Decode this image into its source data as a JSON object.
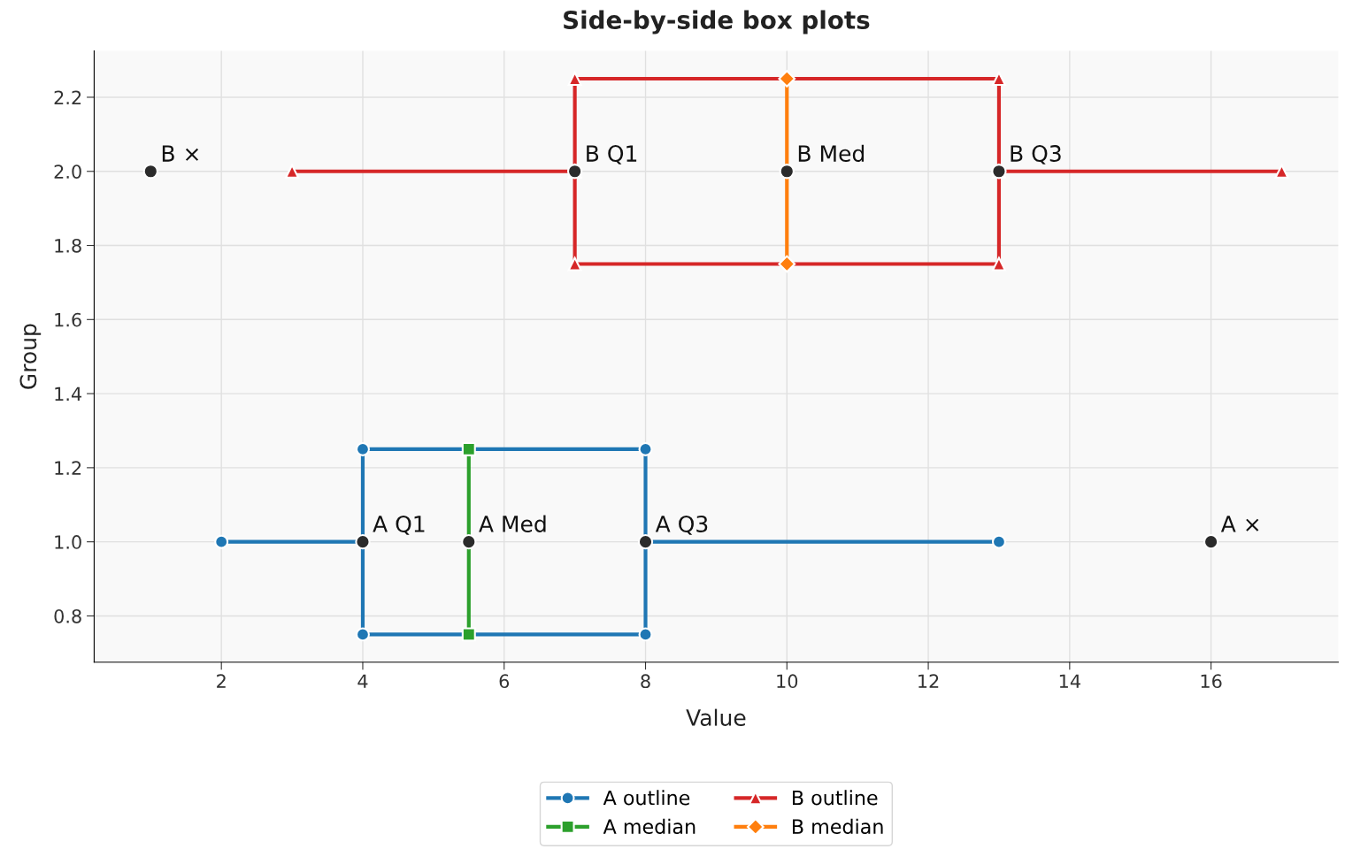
{
  "chart_data": {
    "type": "line",
    "title": "Side-by-side box plots",
    "xlabel": "Value",
    "ylabel": "Group",
    "xlim": [
      0.2,
      17.8
    ],
    "xticks": [
      2,
      4,
      6,
      8,
      10,
      12,
      14,
      16
    ],
    "ylim": [
      0.675,
      2.325
    ],
    "yticks": [
      {
        "value": 0.8,
        "label": "0.8"
      },
      {
        "value": 1.0,
        "label": "1.0"
      },
      {
        "value": 1.2,
        "label": "1.2"
      },
      {
        "value": 1.4,
        "label": "1.4"
      },
      {
        "value": 1.6,
        "label": "1.6"
      },
      {
        "value": 1.8,
        "label": "1.8"
      },
      {
        "value": 2.0,
        "label": "2.0"
      },
      {
        "value": 2.2,
        "label": "2.2"
      }
    ],
    "grid": true,
    "legend": "bottom",
    "line_style": "solid",
    "series": [
      {
        "name": "A outline",
        "color": "#1f77b4",
        "marker": "circle",
        "x": [
          2,
          4,
          4,
          8,
          8,
          4,
          4,
          null,
          8,
          13
        ],
        "values": [
          1.0,
          1.0,
          1.25,
          1.25,
          0.75,
          0.75,
          1.0,
          null,
          1.0,
          1.0
        ]
      },
      {
        "name": "A median",
        "color": "#2ca02c",
        "marker": "square",
        "x": [
          5.5,
          5.5
        ],
        "values": [
          0.75,
          1.25
        ]
      },
      {
        "name": "B outline",
        "color": "#d62728",
        "marker": "triangle",
        "x": [
          3,
          7,
          7,
          13,
          13,
          7,
          7,
          null,
          13,
          17
        ],
        "values": [
          2.0,
          2.0,
          2.25,
          2.25,
          1.75,
          1.75,
          2.0,
          null,
          2.0,
          2.0
        ]
      },
      {
        "name": "B median",
        "color": "#ff7f0e",
        "marker": "diamond",
        "x": [
          10,
          10
        ],
        "values": [
          1.75,
          2.25
        ]
      },
      {
        "type": "scatter",
        "color": "#2b2b2b",
        "marker": "circle",
        "x": [
          4,
          5.5,
          8,
          16,
          1,
          7,
          10,
          13
        ],
        "values": [
          1.0,
          1.0,
          1.0,
          1.0,
          2.0,
          2.0,
          2.0,
          2.0
        ]
      }
    ],
    "annotations": [
      {
        "text": "A Q1",
        "x": 4,
        "y": 1.0
      },
      {
        "text": "A Med",
        "x": 5.5,
        "y": 1.0
      },
      {
        "text": "A Q3",
        "x": 8,
        "y": 1.0
      },
      {
        "text": "A ×",
        "x": 16,
        "y": 1.0
      },
      {
        "text": "B ×",
        "x": 1,
        "y": 2.0
      },
      {
        "text": "B Q1",
        "x": 7,
        "y": 2.0
      },
      {
        "text": "B Med",
        "x": 10,
        "y": 2.0
      },
      {
        "text": "B Q3",
        "x": 13,
        "y": 2.0
      }
    ]
  }
}
